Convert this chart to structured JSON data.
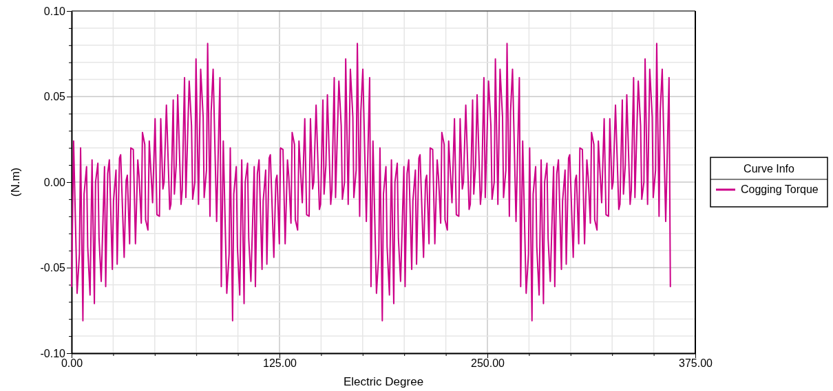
{
  "chart_data": {
    "type": "line",
    "xlabel": "Electric Degree",
    "ylabel": "(N.m)",
    "legend_title": "Curve Info",
    "legend": "right",
    "grid": true,
    "line_style": "solid",
    "marker": "none",
    "xlim": [
      0,
      375
    ],
    "ylim": [
      -0.1,
      0.1
    ],
    "xticks": [
      {
        "value": 0,
        "label": "0.00"
      },
      {
        "value": 25,
        "label": null
      },
      {
        "value": 50,
        "label": null
      },
      {
        "value": 75,
        "label": null
      },
      {
        "value": 100,
        "label": null
      },
      {
        "value": 125,
        "label": "125.00"
      },
      {
        "value": 150,
        "label": null
      },
      {
        "value": 175,
        "label": null
      },
      {
        "value": 200,
        "label": null
      },
      {
        "value": 225,
        "label": null
      },
      {
        "value": 250,
        "label": "250.00"
      },
      {
        "value": 275,
        "label": null
      },
      {
        "value": 300,
        "label": null
      },
      {
        "value": 325,
        "label": null
      },
      {
        "value": 350,
        "label": null
      },
      {
        "value": 375,
        "label": "375.00"
      }
    ],
    "yticks": [
      {
        "value": -0.1,
        "label": "-0.10"
      },
      {
        "value": -0.09,
        "label": null
      },
      {
        "value": -0.08,
        "label": null
      },
      {
        "value": -0.07,
        "label": null
      },
      {
        "value": -0.06,
        "label": null
      },
      {
        "value": -0.05,
        "label": "-0.05"
      },
      {
        "value": -0.04,
        "label": null
      },
      {
        "value": -0.03,
        "label": null
      },
      {
        "value": -0.02,
        "label": null
      },
      {
        "value": -0.01,
        "label": null
      },
      {
        "value": 0,
        "label": "0.00"
      },
      {
        "value": 0.01,
        "label": null
      },
      {
        "value": 0.02,
        "label": null
      },
      {
        "value": 0.03,
        "label": null
      },
      {
        "value": 0.04,
        "label": null
      },
      {
        "value": 0.05,
        "label": "0.05"
      },
      {
        "value": 0.06,
        "label": null
      },
      {
        "value": 0.07,
        "label": null
      },
      {
        "value": 0.08,
        "label": null
      },
      {
        "value": 0.09,
        "label": null
      },
      {
        "value": 0.1,
        "label": "0.10"
      }
    ],
    "series": [
      {
        "name": "Cogging Torque",
        "color": "#cc0088",
        "x": [
          0,
          1.2,
          3.3,
          4.7,
          5.4,
          6.8,
          7.5,
          9.0,
          9.7,
          11.1,
          12.3,
          13.7,
          14.4,
          15.8,
          16.5,
          17.8,
          19.8,
          20.5,
          21.7,
          22.7,
          24.5,
          25.2,
          26.7,
          27.4,
          28.8,
          29.5,
          31.6,
          32.8,
          33.5,
          34.9,
          35.6,
          37.1,
          38.4,
          39.8,
          40.6,
          41.9,
          42.6,
          44.0,
          44.5,
          45.9,
          46.7,
          48.7,
          50.2,
          51.3,
          52.8,
          53.6,
          54.9,
          55.6,
          57.0,
          59.0,
          59.7,
          61.1,
          61.8,
          62.9,
          63.8,
          65.8,
          66.5,
          67.9,
          68.7,
          70.7,
          72.1,
          72.8,
          74.1,
          74.8,
          76.3,
          77.6,
          79.1,
          79.7,
          81.1,
          81.8,
          83.2,
          83.9,
          85.1,
          87.2,
          89.2,
          90,
          91.2,
          93.3,
          94.7,
          95.4,
          96.8,
          97.5,
          99.0,
          99.7,
          101.1,
          102.3,
          103.7,
          104.4,
          105.8,
          106.5,
          107.8,
          109.8,
          110.5,
          111.7,
          112.7,
          114.5,
          115.2,
          116.7,
          117.4,
          118.8,
          119.5,
          121.6,
          122.8,
          123.5,
          124.9,
          125.6,
          127.1,
          128.4,
          129.8,
          130.6,
          131.9,
          132.6,
          134.0,
          134.5,
          135.9,
          136.7,
          138.7,
          140.2,
          141.3,
          142.8,
          143.6,
          144.9,
          145.6,
          147.0,
          149.0,
          149.7,
          151.1,
          151.8,
          152.9,
          153.8,
          155.8,
          156.5,
          157.9,
          158.7,
          160.7,
          162.1,
          162.8,
          164.1,
          164.8,
          166.3,
          167.6,
          169.1,
          169.7,
          171.1,
          171.8,
          173.2,
          173.9,
          175.1,
          177.2,
          179.2,
          180,
          181.2,
          183.3,
          184.7,
          185.4,
          186.8,
          187.5,
          189.0,
          189.7,
          191.1,
          192.3,
          193.7,
          194.4,
          195.8,
          196.5,
          197.8,
          199.8,
          200.5,
          201.7,
          202.7,
          204.5,
          205.2,
          206.7,
          207.4,
          208.8,
          209.5,
          211.6,
          212.8,
          213.5,
          214.9,
          215.6,
          217.1,
          218.4,
          219.8,
          220.6,
          221.9,
          222.6,
          224.0,
          224.5,
          225.9,
          226.7,
          228.7,
          230.2,
          231.3,
          232.8,
          233.6,
          234.9,
          235.6,
          237.0,
          239.0,
          239.7,
          241.1,
          241.8,
          242.9,
          243.8,
          245.8,
          246.5,
          247.9,
          248.7,
          250.7,
          252.1,
          252.8,
          254.1,
          254.8,
          256.3,
          257.6,
          259.1,
          259.7,
          261.1,
          261.8,
          263.2,
          263.9,
          265.1,
          267.2,
          269.2,
          270,
          271.2,
          273.3,
          274.7,
          275.4,
          276.8,
          277.5,
          279.0,
          279.7,
          281.1,
          282.3,
          283.7,
          284.4,
          285.8,
          286.5,
          287.8,
          289.8,
          290.5,
          291.7,
          292.7,
          294.5,
          295.2,
          296.7,
          297.4,
          298.8,
          299.5,
          301.6,
          302.8,
          303.5,
          304.9,
          305.6,
          307.1,
          308.4,
          309.8,
          310.6,
          311.9,
          312.6,
          314.0,
          314.5,
          315.9,
          316.7,
          318.7,
          320.2,
          321.3,
          322.8,
          323.6,
          324.9,
          325.6,
          327.0,
          329.0,
          329.7,
          331.1,
          331.8,
          332.9,
          333.8,
          335.8,
          336.5,
          337.9,
          338.7,
          340.7,
          342.1,
          342.8,
          344.1,
          344.8,
          346.3,
          347.6,
          349.1,
          349.7,
          351.1,
          351.8,
          353.2,
          353.9,
          355.1,
          357.2,
          359.2,
          360
        ],
        "values": [
          -0.061,
          0.024,
          -0.065,
          -0.042,
          0.02,
          -0.081,
          -0.007,
          0.009,
          -0.038,
          -0.066,
          0.013,
          -0.071,
          0.0,
          0.011,
          -0.033,
          -0.058,
          0.009,
          -0.061,
          0.005,
          0.013,
          -0.051,
          -0.011,
          0.007,
          -0.048,
          0.014,
          0.016,
          -0.044,
          0.001,
          0.004,
          -0.036,
          0.02,
          0.019,
          -0.036,
          0.013,
          0.003,
          -0.024,
          0.029,
          0.022,
          -0.022,
          -0.028,
          0.024,
          -0.012,
          0.037,
          -0.019,
          -0.02,
          0.037,
          -0.004,
          0.0,
          0.045,
          -0.016,
          -0.013,
          0.048,
          -0.007,
          0.01,
          0.051,
          -0.013,
          -0.005,
          0.061,
          -0.009,
          0.059,
          0.033,
          -0.01,
          0.0,
          0.072,
          -0.013,
          0.066,
          0.038,
          -0.009,
          0.007,
          0.081,
          -0.02,
          0.041,
          0.066,
          -0.023,
          0.061,
          -0.061,
          0.024,
          -0.065,
          -0.042,
          0.02,
          -0.081,
          -0.007,
          0.009,
          -0.038,
          -0.066,
          0.013,
          -0.071,
          0.0,
          0.011,
          -0.033,
          -0.058,
          0.009,
          -0.061,
          0.005,
          0.013,
          -0.051,
          -0.011,
          0.007,
          -0.048,
          0.014,
          0.016,
          -0.044,
          0.001,
          0.004,
          -0.036,
          0.02,
          0.019,
          -0.036,
          0.013,
          0.003,
          -0.024,
          0.029,
          0.022,
          -0.022,
          -0.028,
          0.024,
          -0.012,
          0.037,
          -0.019,
          -0.02,
          0.037,
          -0.004,
          0.0,
          0.045,
          -0.016,
          -0.013,
          0.048,
          -0.007,
          0.01,
          0.051,
          -0.013,
          -0.005,
          0.061,
          -0.009,
          0.059,
          0.033,
          -0.01,
          0.0,
          0.072,
          -0.013,
          0.066,
          0.038,
          -0.009,
          0.007,
          0.081,
          -0.02,
          0.041,
          0.066,
          -0.023,
          0.061,
          -0.061,
          0.024,
          -0.065,
          -0.042,
          0.02,
          -0.081,
          -0.007,
          0.009,
          -0.038,
          -0.066,
          0.013,
          -0.071,
          0.0,
          0.011,
          -0.033,
          -0.058,
          0.009,
          -0.061,
          0.005,
          0.013,
          -0.051,
          -0.011,
          0.007,
          -0.048,
          0.014,
          0.016,
          -0.044,
          0.001,
          0.004,
          -0.036,
          0.02,
          0.019,
          -0.036,
          0.013,
          0.003,
          -0.024,
          0.029,
          0.022,
          -0.022,
          -0.028,
          0.024,
          -0.012,
          0.037,
          -0.019,
          -0.02,
          0.037,
          -0.004,
          0.0,
          0.045,
          -0.016,
          -0.013,
          0.048,
          -0.007,
          0.01,
          0.051,
          -0.013,
          -0.005,
          0.061,
          -0.009,
          0.059,
          0.033,
          -0.01,
          0.0,
          0.072,
          -0.013,
          0.066,
          0.038,
          -0.009,
          0.007,
          0.081,
          -0.02,
          0.041,
          0.066,
          -0.023,
          0.061,
          -0.061,
          0.024,
          -0.065,
          -0.042,
          0.02,
          -0.081,
          -0.007,
          0.009,
          -0.038,
          -0.066,
          0.013,
          -0.071,
          0.0,
          0.011,
          -0.033,
          -0.058,
          0.009,
          -0.061,
          0.005,
          0.013,
          -0.051,
          -0.011,
          0.007,
          -0.048,
          0.014,
          0.016,
          -0.044,
          0.001,
          0.004,
          -0.036,
          0.02,
          0.019,
          -0.036,
          0.013,
          0.003,
          -0.024,
          0.029,
          0.022,
          -0.022,
          -0.028,
          0.024,
          -0.012,
          0.037,
          -0.019,
          -0.02,
          0.037,
          -0.004,
          0.0,
          0.045,
          -0.016,
          -0.013,
          0.048,
          -0.007,
          0.01,
          0.051,
          -0.013,
          -0.005,
          0.061,
          -0.009,
          0.059,
          0.033,
          -0.01,
          0.0,
          0.072,
          -0.013,
          0.066,
          0.038,
          -0.009,
          0.007,
          0.081,
          -0.02,
          0.041,
          0.066,
          -0.023,
          0.061,
          -0.061
        ]
      }
    ]
  }
}
